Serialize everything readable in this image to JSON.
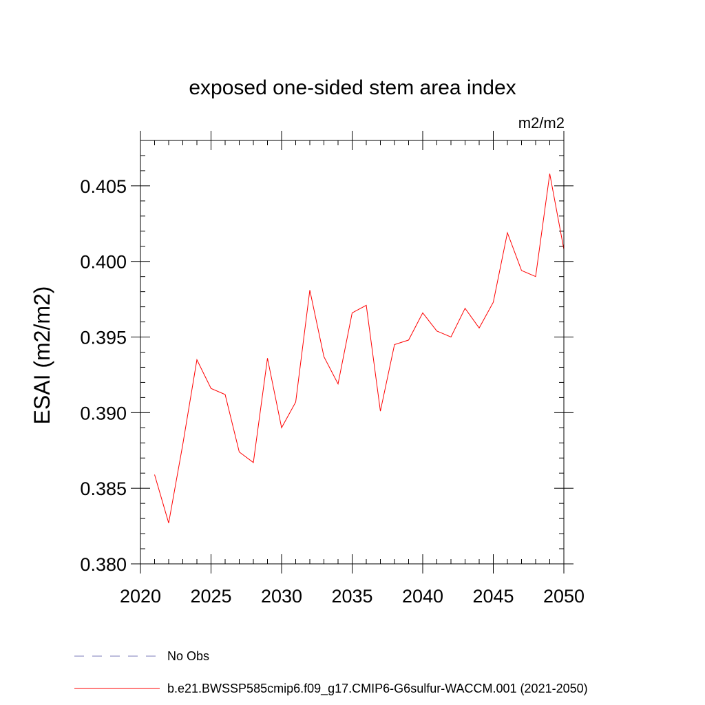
{
  "chart_data": {
    "type": "line",
    "title": "exposed one-sided stem area index",
    "units_label": "m2/m2",
    "ylabel": "ESAI  (m2/m2)",
    "xlabel": "",
    "xlim": [
      2020,
      2050
    ],
    "ylim": [
      0.38,
      0.408
    ],
    "x_ticks": [
      "2020",
      "2025",
      "2030",
      "2035",
      "2040",
      "2045",
      "2050"
    ],
    "y_ticks": [
      "0.380",
      "0.385",
      "0.390",
      "0.395",
      "0.400",
      "0.405"
    ],
    "grid": false,
    "series": [
      {
        "name": "b.e21.BWSSP585cmip6.f09_g17.CMIP6-G6sulfur-WACCM.001 (2021-2050)",
        "color": "#ff0000",
        "x": [
          2021,
          2022,
          2023,
          2024,
          2025,
          2026,
          2027,
          2028,
          2029,
          2030,
          2031,
          2032,
          2033,
          2034,
          2035,
          2036,
          2037,
          2038,
          2039,
          2040,
          2041,
          2042,
          2043,
          2044,
          2045,
          2046,
          2047,
          2048,
          2049,
          2050
        ],
        "y": [
          0.3859,
          0.3827,
          0.3879,
          0.3935,
          0.3916,
          0.3912,
          0.3874,
          0.3867,
          0.3936,
          0.389,
          0.3907,
          0.3981,
          0.3937,
          0.3919,
          0.3966,
          0.3971,
          0.3901,
          0.3945,
          0.3948,
          0.3966,
          0.3954,
          0.395,
          0.3969,
          0.3956,
          0.3973,
          0.4019,
          0.3994,
          0.399,
          0.4058,
          0.4008
        ]
      }
    ],
    "legend": {
      "placement": "bottom",
      "entries": [
        {
          "label": "No Obs",
          "color": "#7a7ab8",
          "style": "dashed"
        },
        {
          "label": "b.e21.BWSSP585cmip6.f09_g17.CMIP6-G6sulfur-WACCM.001 (2021-2050)",
          "color": "#ff0000",
          "style": "solid"
        }
      ]
    }
  }
}
